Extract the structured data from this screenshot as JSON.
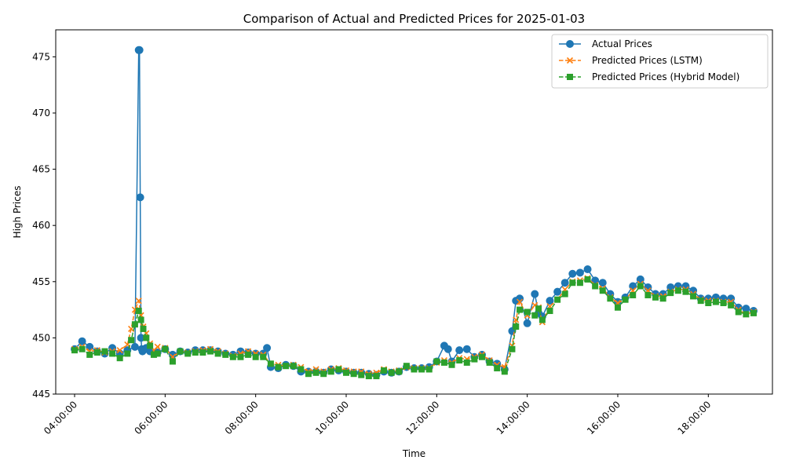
{
  "chart_data": {
    "type": "line",
    "title": "Comparison of Actual and Predicted Prices for 2025-01-03",
    "xlabel": "Time",
    "ylabel": "High Prices",
    "xlim": [
      "03:35:00",
      "19:25:00"
    ],
    "ylim": [
      445,
      477.4
    ],
    "x_ticks": [
      "04:00:00",
      "06:00:00",
      "08:00:00",
      "10:00:00",
      "12:00:00",
      "14:00:00",
      "16:00:00",
      "18:00:00"
    ],
    "y_ticks": [
      445,
      450,
      455,
      460,
      465,
      470,
      475
    ],
    "grid": false,
    "legend_position": "top-right",
    "series": [
      {
        "name": "Actual Prices",
        "color": "#1f77b4",
        "line_style": "solid",
        "marker": "circle",
        "x": [
          "04:00",
          "04:10",
          "04:20",
          "04:30",
          "04:40",
          "04:50",
          "05:00",
          "05:10",
          "05:20",
          "05:25",
          "05:26",
          "05:27",
          "05:28",
          "05:29",
          "05:30",
          "05:31",
          "05:32",
          "05:35",
          "05:40",
          "05:50",
          "06:00",
          "06:10",
          "06:20",
          "06:30",
          "06:40",
          "06:50",
          "07:00",
          "07:10",
          "07:20",
          "07:30",
          "07:40",
          "07:50",
          "08:00",
          "08:10",
          "08:15",
          "08:20",
          "08:30",
          "08:40",
          "08:50",
          "09:00",
          "09:10",
          "09:20",
          "09:30",
          "09:40",
          "09:50",
          "10:00",
          "10:10",
          "10:20",
          "10:30",
          "10:40",
          "10:50",
          "11:00",
          "11:10",
          "11:20",
          "11:30",
          "11:40",
          "11:50",
          "12:00",
          "12:10",
          "12:15",
          "12:20",
          "12:30",
          "12:40",
          "12:50",
          "13:00",
          "13:10",
          "13:20",
          "13:30",
          "13:40",
          "13:45",
          "13:50",
          "14:00",
          "14:10",
          "14:15",
          "14:20",
          "14:30",
          "14:40",
          "14:50",
          "15:00",
          "15:10",
          "15:20",
          "15:30",
          "15:40",
          "15:50",
          "16:00",
          "16:10",
          "16:20",
          "16:30",
          "16:40",
          "16:50",
          "17:00",
          "17:10",
          "17:20",
          "17:30",
          "17:40",
          "17:50",
          "18:00",
          "18:10",
          "18:20",
          "18:30",
          "18:40",
          "18:50",
          "19:00"
        ],
        "y": [
          449.0,
          449.7,
          449.2,
          448.8,
          448.6,
          449.1,
          448.6,
          448.9,
          449.2,
          475.6,
          475.6,
          462.5,
          450.0,
          449.0,
          448.8,
          448.9,
          449.0,
          449.1,
          448.8,
          448.7,
          449.0,
          448.5,
          448.8,
          448.7,
          448.9,
          448.9,
          448.9,
          448.8,
          448.6,
          448.5,
          448.8,
          448.7,
          448.6,
          448.6,
          449.1,
          447.4,
          447.3,
          447.6,
          447.5,
          447.0,
          447.0,
          447.0,
          446.9,
          447.2,
          447.1,
          447.0,
          446.9,
          446.9,
          446.8,
          446.7,
          447.0,
          446.9,
          447.0,
          447.4,
          447.3,
          447.3,
          447.4,
          447.9,
          449.3,
          449.0,
          447.9,
          448.9,
          449.0,
          448.3,
          448.5,
          447.9,
          447.7,
          447.2,
          450.6,
          453.3,
          453.5,
          451.3,
          453.9,
          452.2,
          451.9,
          453.3,
          454.1,
          454.9,
          455.7,
          455.8,
          456.1,
          455.1,
          454.9,
          453.9,
          453.2,
          453.6,
          454.6,
          455.2,
          454.5,
          453.9,
          453.9,
          454.5,
          454.6,
          454.6,
          454.2,
          453.5,
          453.5,
          453.6,
          453.5,
          453.5,
          452.7,
          452.6,
          452.4
        ]
      },
      {
        "name": "Predicted Prices (LSTM)",
        "color": "#ff7f0e",
        "line_style": "dashed",
        "marker": "x",
        "x": [
          "04:00",
          "04:10",
          "04:20",
          "04:30",
          "04:40",
          "04:50",
          "05:00",
          "05:10",
          "05:15",
          "05:20",
          "05:25",
          "05:28",
          "05:31",
          "05:35",
          "05:40",
          "05:45",
          "05:50",
          "06:00",
          "06:10",
          "06:20",
          "06:30",
          "06:40",
          "06:50",
          "07:00",
          "07:10",
          "07:20",
          "07:30",
          "07:40",
          "07:50",
          "08:00",
          "08:10",
          "08:20",
          "08:30",
          "08:40",
          "08:50",
          "09:00",
          "09:10",
          "09:20",
          "09:30",
          "09:40",
          "09:50",
          "10:00",
          "10:10",
          "10:20",
          "10:30",
          "10:40",
          "10:50",
          "11:00",
          "11:10",
          "11:20",
          "11:30",
          "11:40",
          "11:50",
          "12:00",
          "12:10",
          "12:20",
          "12:30",
          "12:40",
          "12:50",
          "13:00",
          "13:10",
          "13:20",
          "13:30",
          "13:40",
          "13:45",
          "13:50",
          "14:00",
          "14:10",
          "14:15",
          "14:20",
          "14:30",
          "14:40",
          "14:50",
          "15:00",
          "15:10",
          "15:20",
          "15:30",
          "15:40",
          "15:50",
          "16:00",
          "16:10",
          "16:20",
          "16:30",
          "16:40",
          "16:50",
          "17:00",
          "17:10",
          "17:20",
          "17:30",
          "17:40",
          "17:50",
          "18:00",
          "18:10",
          "18:20",
          "18:30",
          "18:40",
          "18:50",
          "19:00"
        ],
        "y": [
          449.0,
          449.2,
          448.8,
          448.9,
          448.7,
          448.8,
          448.9,
          449.4,
          450.8,
          452.5,
          453.3,
          452.0,
          451.0,
          450.4,
          449.5,
          448.9,
          449.2,
          449.1,
          448.3,
          448.8,
          448.7,
          448.8,
          448.9,
          449.0,
          448.8,
          448.6,
          448.4,
          448.6,
          448.8,
          448.6,
          448.5,
          447.7,
          447.6,
          447.5,
          447.6,
          447.4,
          447.0,
          447.2,
          447.0,
          447.2,
          447.3,
          447.1,
          447.0,
          447.0,
          446.8,
          446.9,
          447.2,
          447.0,
          447.1,
          447.4,
          447.3,
          447.3,
          447.3,
          447.8,
          448.0,
          447.8,
          448.2,
          448.1,
          448.3,
          448.5,
          448.0,
          447.6,
          447.4,
          449.3,
          451.6,
          453.2,
          452.0,
          452.9,
          452.7,
          451.4,
          452.8,
          453.4,
          454.3,
          455.0,
          455.1,
          455.3,
          454.7,
          454.4,
          453.6,
          453.1,
          453.4,
          454.2,
          454.8,
          454.2,
          453.7,
          453.7,
          454.1,
          454.3,
          454.3,
          453.9,
          453.4,
          453.3,
          453.3,
          453.2,
          453.2,
          452.5,
          452.1,
          452.3
        ]
      },
      {
        "name": "Predicted Prices (Hybrid Model)",
        "color": "#2ca02c",
        "line_style": "dashed",
        "marker": "square",
        "x": [
          "04:00",
          "04:10",
          "04:20",
          "04:30",
          "04:40",
          "04:50",
          "05:00",
          "05:10",
          "05:15",
          "05:20",
          "05:25",
          "05:28",
          "05:31",
          "05:35",
          "05:40",
          "05:45",
          "05:50",
          "06:00",
          "06:10",
          "06:20",
          "06:30",
          "06:40",
          "06:50",
          "07:00",
          "07:10",
          "07:20",
          "07:30",
          "07:40",
          "07:50",
          "08:00",
          "08:10",
          "08:20",
          "08:30",
          "08:40",
          "08:50",
          "09:00",
          "09:10",
          "09:20",
          "09:30",
          "09:40",
          "09:50",
          "10:00",
          "10:10",
          "10:20",
          "10:30",
          "10:40",
          "10:50",
          "11:00",
          "11:10",
          "11:20",
          "11:30",
          "11:40",
          "11:50",
          "12:00",
          "12:10",
          "12:20",
          "12:30",
          "12:40",
          "12:50",
          "13:00",
          "13:10",
          "13:20",
          "13:30",
          "13:40",
          "13:45",
          "13:50",
          "14:00",
          "14:10",
          "14:15",
          "14:20",
          "14:30",
          "14:40",
          "14:50",
          "15:00",
          "15:10",
          "15:20",
          "15:30",
          "15:40",
          "15:50",
          "16:00",
          "16:10",
          "16:20",
          "16:30",
          "16:40",
          "16:50",
          "17:00",
          "17:10",
          "17:20",
          "17:30",
          "17:40",
          "17:50",
          "18:00",
          "18:10",
          "18:20",
          "18:30",
          "18:40",
          "18:50",
          "19:00"
        ],
        "y": [
          448.9,
          449.0,
          448.5,
          448.7,
          448.8,
          448.6,
          448.2,
          448.6,
          449.8,
          451.2,
          452.4,
          451.6,
          450.8,
          450.0,
          449.3,
          448.5,
          448.6,
          449.0,
          447.9,
          448.8,
          448.6,
          448.7,
          448.7,
          448.8,
          448.6,
          448.5,
          448.3,
          448.3,
          448.5,
          448.3,
          448.3,
          447.7,
          447.4,
          447.5,
          447.5,
          447.2,
          446.8,
          446.9,
          446.8,
          447.0,
          447.2,
          446.9,
          446.8,
          446.7,
          446.6,
          446.6,
          447.1,
          446.9,
          447.0,
          447.5,
          447.2,
          447.2,
          447.2,
          447.9,
          447.8,
          447.6,
          448.0,
          447.8,
          448.1,
          448.3,
          447.8,
          447.3,
          447.0,
          449.0,
          451.0,
          452.5,
          452.3,
          452.0,
          452.6,
          451.6,
          452.4,
          453.4,
          453.9,
          454.9,
          454.9,
          455.2,
          454.6,
          454.2,
          453.5,
          452.7,
          453.4,
          453.8,
          454.6,
          453.8,
          453.6,
          453.5,
          454.0,
          454.2,
          454.1,
          453.7,
          453.3,
          453.1,
          453.2,
          453.1,
          452.9,
          452.3,
          452.1,
          452.2
        ]
      }
    ]
  }
}
